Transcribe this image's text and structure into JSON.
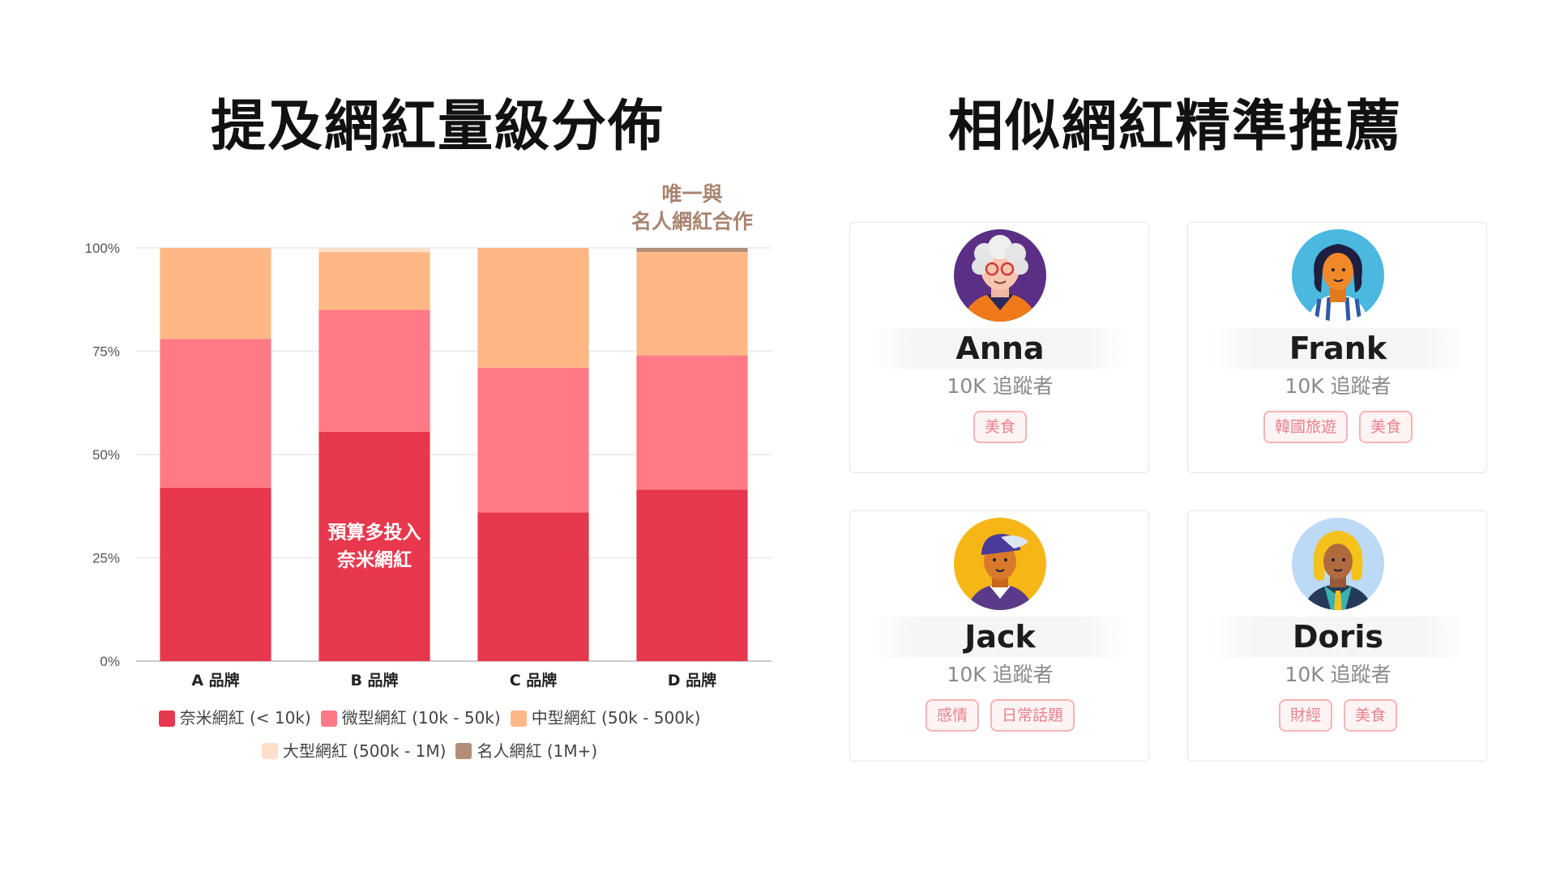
{
  "left_title": "提及網紅量級分佈",
  "right_title": "相似網紅精準推薦",
  "chart_data": {
    "type": "bar",
    "stacked": true,
    "categories": [
      "A 品牌",
      "B 品牌",
      "C 品牌",
      "D 品牌"
    ],
    "ylim": [
      0,
      100
    ],
    "y_ticks": [
      "0%",
      "25%",
      "50%",
      "75%",
      "100%"
    ],
    "grid": true,
    "legend_position": "bottom",
    "series": [
      {
        "name": "奈米網紅 (< 10k)",
        "color": "#e8384d",
        "values": [
          42,
          55.5,
          36,
          41.5
        ]
      },
      {
        "name": "微型網紅 (10k - 50k)",
        "color": "#ff7a85",
        "values": [
          36,
          29.5,
          35,
          32.5
        ]
      },
      {
        "name": "中型網紅 (50k - 500k)",
        "color": "#ffb885",
        "values": [
          22,
          14,
          29,
          25
        ]
      },
      {
        "name": "大型網紅 (500k - 1M)",
        "color": "#ffdfcc",
        "values": [
          0,
          1,
          0,
          0
        ]
      },
      {
        "name": "名人網紅 (1M+)",
        "color": "#b28e79",
        "values": [
          0,
          0,
          0,
          1
        ]
      }
    ],
    "annotations": [
      {
        "category": "B 品牌",
        "lines": [
          "預算多投入",
          "奈米網紅"
        ],
        "placement": "inside"
      },
      {
        "category": "D 品牌",
        "lines": [
          "唯一與",
          "名人網紅合作"
        ],
        "placement": "above"
      }
    ]
  },
  "influencers": [
    {
      "name": "Anna",
      "followers": "10K 追蹤者",
      "tags": [
        "美食"
      ],
      "avatar_icon": "elderly-woman-glasses-avatar-icon",
      "avatar_bg": "#5b2f86"
    },
    {
      "name": "Frank",
      "followers": "10K 追蹤者",
      "tags": [
        "韓國旅遊",
        "美食"
      ],
      "avatar_icon": "curly-hair-person-avatar-icon",
      "avatar_bg": "#4bb8e0"
    },
    {
      "name": "Jack",
      "followers": "10K 追蹤者",
      "tags": [
        "感情",
        "日常話題"
      ],
      "avatar_icon": "cap-man-avatar-icon",
      "avatar_bg": "#f5b616"
    },
    {
      "name": "Doris",
      "followers": "10K 追蹤者",
      "tags": [
        "財經",
        "美食"
      ],
      "avatar_icon": "blonde-woman-avatar-icon",
      "avatar_bg": "#bcd9f5"
    }
  ],
  "colors": {
    "tag_border": "#f4b4b4",
    "tag_text": "#e8808a",
    "annotation_brown": "#a98471"
  }
}
